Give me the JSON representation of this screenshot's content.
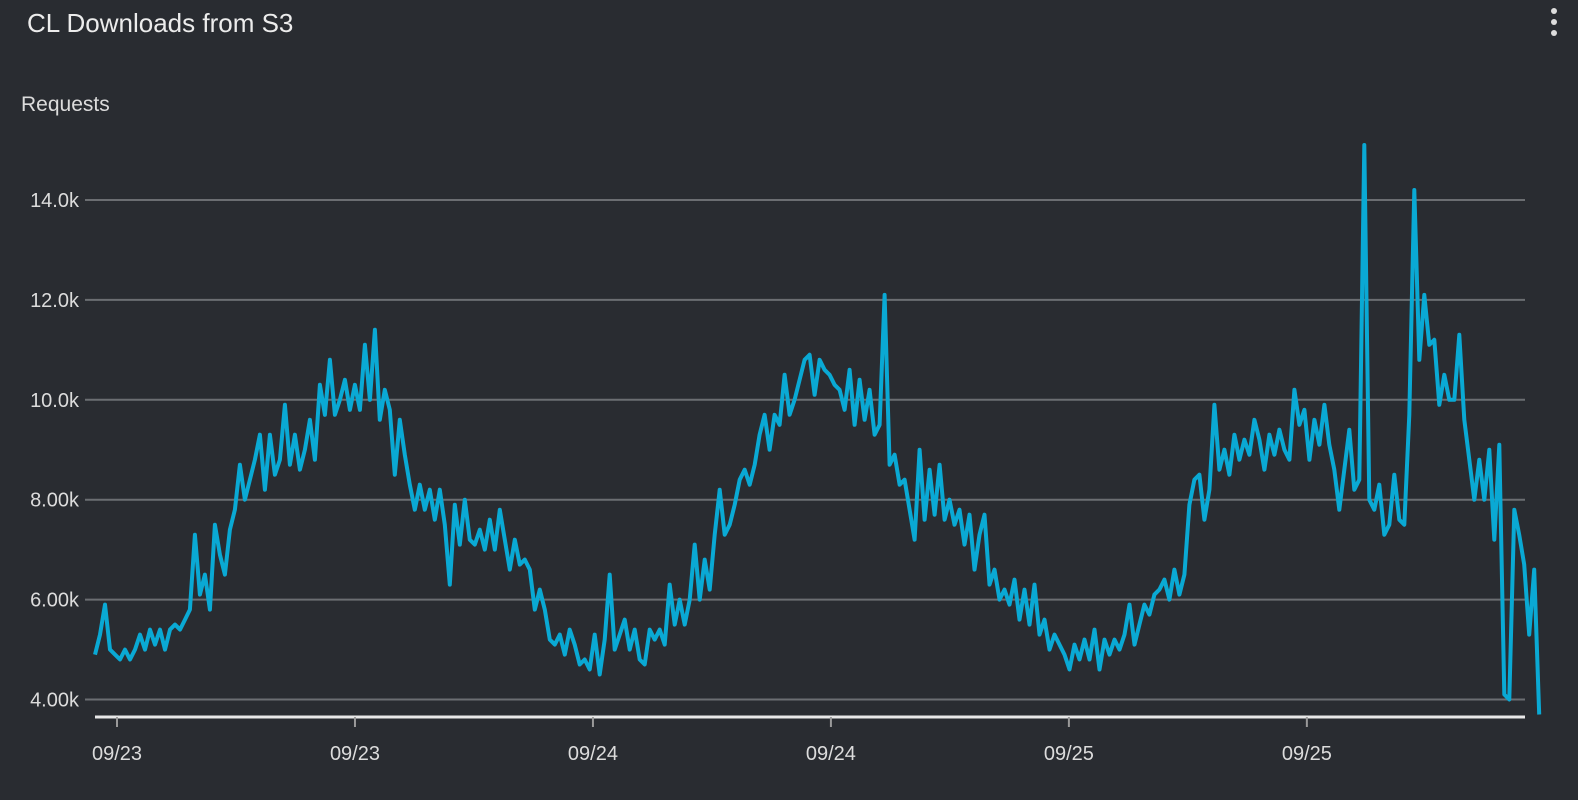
{
  "header": {
    "title": "CL Downloads from S3",
    "menu_icon": "kebab-menu-icon"
  },
  "colors": {
    "line": "#0aa9d4",
    "grid": "#6b6e72",
    "background": "#292c31",
    "axis": "#e8e8e8"
  },
  "chart_data": {
    "type": "line",
    "title": "CL Downloads from S3",
    "xlabel": "",
    "ylabel": "Requests",
    "ylim": [
      3.65,
      15.2
    ],
    "y_unit": "thousands",
    "yticks": [
      4,
      6,
      8,
      10,
      12,
      14
    ],
    "ytick_labels": [
      "4.00k",
      "6.00k",
      "8.00k",
      "10.0k",
      "12.0k",
      "14.0k"
    ],
    "x_unit": "hours since first tick",
    "xlim": [
      -1.11,
      71.0
    ],
    "xticks": [
      0,
      12,
      24,
      36,
      48,
      60
    ],
    "xtick_labels": [
      "09/23",
      "09/23",
      "09/24",
      "09/24",
      "09/25",
      "09/25"
    ],
    "grid": true,
    "legend": "none",
    "series": [
      {
        "name": "Requests",
        "x_start": -1.11,
        "x_step": 0.252,
        "values": [
          4.9,
          5.3,
          5.9,
          5.0,
          4.9,
          4.8,
          5.0,
          4.8,
          5.0,
          5.3,
          5.0,
          5.4,
          5.1,
          5.4,
          5.0,
          5.4,
          5.5,
          5.4,
          5.6,
          5.8,
          7.3,
          6.1,
          6.5,
          5.8,
          7.5,
          6.9,
          6.5,
          7.4,
          7.8,
          8.7,
          8.0,
          8.4,
          8.8,
          9.3,
          8.2,
          9.3,
          8.5,
          8.8,
          9.9,
          8.7,
          9.3,
          8.6,
          9.0,
          9.6,
          8.8,
          10.3,
          9.7,
          10.8,
          9.7,
          10.0,
          10.4,
          9.8,
          10.3,
          9.8,
          11.1,
          10.0,
          11.4,
          9.6,
          10.2,
          9.8,
          8.5,
          9.6,
          8.9,
          8.3,
          7.8,
          8.3,
          7.8,
          8.2,
          7.6,
          8.2,
          7.5,
          6.3,
          7.9,
          7.1,
          8.0,
          7.2,
          7.1,
          7.4,
          7.0,
          7.6,
          7.0,
          7.8,
          7.2,
          6.6,
          7.2,
          6.7,
          6.8,
          6.6,
          5.8,
          6.2,
          5.8,
          5.2,
          5.1,
          5.3,
          4.9,
          5.4,
          5.1,
          4.7,
          4.8,
          4.6,
          5.3,
          4.5,
          5.2,
          6.5,
          5.0,
          5.3,
          5.6,
          5.0,
          5.4,
          4.8,
          4.7,
          5.4,
          5.2,
          5.4,
          5.1,
          6.3,
          5.5,
          6.0,
          5.5,
          6.0,
          7.1,
          6.0,
          6.8,
          6.2,
          7.3,
          8.2,
          7.3,
          7.5,
          7.9,
          8.4,
          8.6,
          8.3,
          8.7,
          9.3,
          9.7,
          9.0,
          9.7,
          9.5,
          10.5,
          9.7,
          10.0,
          10.4,
          10.8,
          10.9,
          10.1,
          10.8,
          10.6,
          10.5,
          10.3,
          10.2,
          9.8,
          10.6,
          9.5,
          10.4,
          9.6,
          10.2,
          9.3,
          9.5,
          12.1,
          8.7,
          8.9,
          8.3,
          8.4,
          7.8,
          7.2,
          9.0,
          7.6,
          8.6,
          7.7,
          8.7,
          7.6,
          8.0,
          7.5,
          7.8,
          7.1,
          7.7,
          6.6,
          7.3,
          7.7,
          6.3,
          6.6,
          6.0,
          6.2,
          5.9,
          6.4,
          5.6,
          6.2,
          5.5,
          6.3,
          5.3,
          5.6,
          5.0,
          5.3,
          5.1,
          4.9,
          4.6,
          5.1,
          4.8,
          5.2,
          4.8,
          5.4,
          4.6,
          5.2,
          4.9,
          5.2,
          5.0,
          5.3,
          5.9,
          5.1,
          5.5,
          5.9,
          5.7,
          6.1,
          6.2,
          6.4,
          6.0,
          6.6,
          6.1,
          6.5,
          7.9,
          8.4,
          8.5,
          7.6,
          8.2,
          9.9,
          8.6,
          9.0,
          8.5,
          9.3,
          8.8,
          9.2,
          8.9,
          9.6,
          9.2,
          8.6,
          9.3,
          8.9,
          9.4,
          9.0,
          8.8,
          10.2,
          9.5,
          9.8,
          8.8,
          9.6,
          9.1,
          9.9,
          9.1,
          8.6,
          7.8,
          8.6,
          9.4,
          8.2,
          8.4,
          15.1,
          8.0,
          7.8,
          8.3,
          7.3,
          7.5,
          8.5,
          7.6,
          7.5,
          9.7,
          14.2,
          10.8,
          12.1,
          11.1,
          11.2,
          9.9,
          10.5,
          10.0,
          10.0,
          11.3,
          9.6,
          8.8,
          8.0,
          8.8,
          8.0,
          9.0,
          7.2,
          9.1,
          4.1,
          4.0,
          7.8,
          7.3,
          6.7,
          5.3,
          6.6,
          3.7
        ]
      }
    ]
  }
}
